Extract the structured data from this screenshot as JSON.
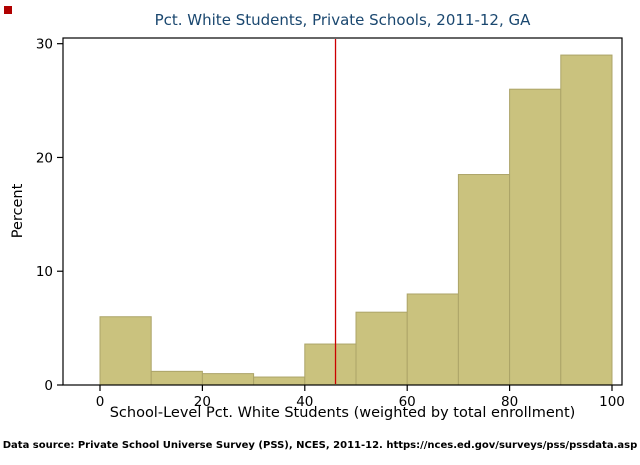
{
  "title": "Pct. White Students, Private Schools, 2011-12, GA",
  "footnote": "Data source: Private School Universe Survey (PSS), NCES, 2011-12. https://nces.ed.gov/surveys/pss/pssdata.asp",
  "colors": {
    "bar_fill": "#cac27e",
    "bar_stroke": "#aca468",
    "ref_line": "#cc0000",
    "plot_border": "#000000",
    "title": "#1a476f",
    "axis_text": "#000000"
  },
  "chart_data": {
    "type": "bar",
    "title": "Pct. White Students, Private Schools, 2011-12, GA",
    "xlabel": "School-Level Pct. White Students (weighted by total enrollment)",
    "ylabel": "Percent",
    "bin_start": 0,
    "bin_width": 10,
    "categories": [
      "0-10",
      "10-20",
      "20-30",
      "30-40",
      "40-50",
      "50-60",
      "60-70",
      "70-80",
      "80-90",
      "90-100"
    ],
    "values": [
      6,
      1.2,
      1,
      0.7,
      3.6,
      6.4,
      8,
      18.5,
      26,
      29
    ],
    "x_ticks": [
      0,
      20,
      40,
      60,
      80,
      100
    ],
    "y_ticks": [
      0,
      10,
      20,
      30
    ],
    "xlim": [
      0,
      100
    ],
    "ylim": [
      0,
      30.5
    ],
    "ref_line_x": 46,
    "grid": false,
    "legend": false
  }
}
